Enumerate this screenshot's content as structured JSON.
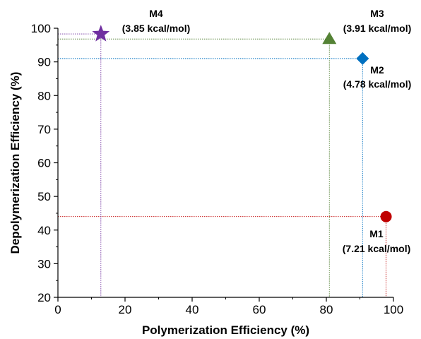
{
  "chart_data": {
    "type": "scatter",
    "title": "",
    "xlabel": "Polymerization Efficiency (%)",
    "ylabel": "Depolymerization Efficiency (%)",
    "xlim": [
      0,
      100
    ],
    "ylim": [
      20,
      100
    ],
    "xticks": [
      "0",
      "20",
      "40",
      "60",
      "80",
      "100"
    ],
    "yticks": [
      "20",
      "30",
      "40",
      "50",
      "60",
      "70",
      "80",
      "90",
      "100"
    ],
    "grid": false,
    "points": [
      {
        "name": "M1",
        "energy": "(7.21 kcal/mol)",
        "x": 97.8,
        "y": 44.0,
        "marker": "circle",
        "color": "#c00000"
      },
      {
        "name": "M2",
        "energy": "(4.78 kcal/mol)",
        "x": 90.8,
        "y": 91.0,
        "marker": "diamond",
        "color": "#0070c0"
      },
      {
        "name": "M3",
        "energy": "(3.91 kcal/mol)",
        "x": 80.9,
        "y": 96.8,
        "marker": "triangle",
        "color": "#548235"
      },
      {
        "name": "M4",
        "energy": "(3.85 kcal/mol)",
        "x": 12.8,
        "y": 98.3,
        "marker": "star",
        "color": "#7030a0"
      }
    ]
  }
}
